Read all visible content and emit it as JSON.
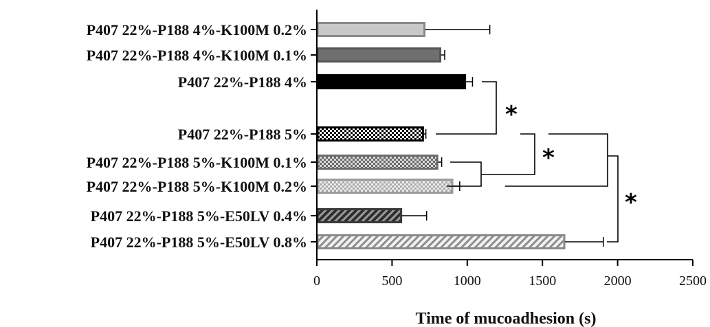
{
  "chart_data": {
    "type": "bar",
    "orientation": "horizontal",
    "title": "",
    "xlabel": "Time of mucoadhesion (s)",
    "ylabel": "",
    "xlim": [
      0,
      2500
    ],
    "xticks": [
      0,
      500,
      1000,
      1500,
      2000,
      2500
    ],
    "xtick_labels": [
      "0",
      "500",
      "1000",
      "1500",
      "2000",
      "2500"
    ],
    "grid": false,
    "legend": "none",
    "categories": [
      "P407 22%-P188 4%-K100M 0.2%",
      "P407 22%-P188 4%-K100M 0.1%",
      "P407 22%-P188 4%",
      "P407 22%-P188 5%",
      "P407 22%-P188 5%-K100M 0.1%",
      "P407 22%-P188 5%-K100M 0.2%",
      "P407 22%-P188 5%-E50LV 0.4%",
      "P407 22%-P188 5%-E50LV 0.8%"
    ],
    "values": [
      720,
      825,
      990,
      710,
      805,
      905,
      565,
      1650
    ],
    "error_plus": [
      430,
      25,
      45,
      15,
      25,
      45,
      165,
      255
    ],
    "styles": [
      {
        "fill": "#c8c8c8",
        "stroke": "#8a8a8a",
        "pattern": "solid"
      },
      {
        "fill": "#6f6f6f",
        "stroke": "#555555",
        "pattern": "solid"
      },
      {
        "fill": "#000000",
        "stroke": "#000000",
        "pattern": "solid"
      },
      {
        "fill": "#000000",
        "stroke": "#000000",
        "pattern": "checker-dark"
      },
      {
        "fill": "#6a6a6a",
        "stroke": "#6a6a6a",
        "pattern": "checker-mid"
      },
      {
        "fill": "#9a9a9a",
        "stroke": "#9a9a9a",
        "pattern": "checker-light"
      },
      {
        "fill": "#3a3a3a",
        "stroke": "#3a3a3a",
        "pattern": "hatch-dark"
      },
      {
        "fill": "#8a8a8a",
        "stroke": "#8a8a8a",
        "pattern": "hatch-light"
      }
    ],
    "significance": [
      {
        "label": "*",
        "between": [
          "P407 22%-P188 4%",
          "P407 22%-P188 5%"
        ]
      },
      {
        "label": "*",
        "between": [
          "P407 22%-P188 5%",
          "P407 22%-P188 5%-K100M 0.1% / K100M 0.2%"
        ]
      },
      {
        "label": "*",
        "between": [
          "P407 22%-P188 5% / K100M 0.2%",
          "P407 22%-P188 5%-E50LV 0.8%"
        ]
      }
    ]
  }
}
